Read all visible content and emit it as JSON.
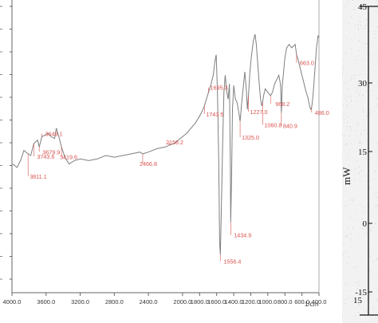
{
  "chart_data": [
    {
      "type": "line",
      "title": "",
      "xlabel": "1/cm",
      "ylabel": "",
      "xlim": [
        4000,
        400
      ],
      "x_reversed": true,
      "x_ticks": [
        "4000.0",
        "3600.0",
        "3200.0",
        "2800.0",
        "2400.0",
        "2000.0",
        "1600.0",
        "1200.0",
        "800.0",
        "400.0",
        "3600.0",
        "3200.0",
        "2800.0",
        "2400.0",
        "2000.0",
        "1600.0",
        "1200.0",
        "800.0",
        "600.0"
      ],
      "x_tick_values": [
        4000,
        3600,
        3200,
        2800,
        2400,
        2000,
        1600,
        1200,
        800,
        400
      ],
      "x_tick_labels": [
        "4000.0",
        "3600.0",
        "3200.0",
        "2800.0",
        "2400.0",
        "2000.0",
        "1800.0",
        "1600.0",
        "1400.0",
        "1200.0",
        "1000.0",
        "800.0",
        "600.0",
        "400.0"
      ],
      "x_tick_label_values": [
        4000,
        3600,
        3200,
        2800,
        2400,
        2000,
        1800,
        1600,
        1400,
        1200,
        1000,
        800,
        600,
        400
      ],
      "line_color": "#7f7f7f",
      "annotation_color": "#d9534f",
      "grid": false,
      "series": [
        {
          "points": [
            [
              3990,
              58
            ],
            [
              3940,
              56
            ],
            [
              3900,
              60
            ],
            [
              3860,
              66
            ],
            [
              3811.1,
              64
            ],
            [
              3780,
              63
            ],
            [
              3743.6,
              70
            ],
            [
              3700,
              72
            ],
            [
              3679.9,
              68
            ],
            [
              3649.1,
              74
            ],
            [
              3610,
              75
            ],
            [
              3580,
              76
            ],
            [
              3540,
              74
            ],
            [
              3500,
              73
            ],
            [
              3480,
              79
            ],
            [
              3450,
              74
            ],
            [
              3419.6,
              68
            ],
            [
              3380,
              62
            ],
            [
              3330,
              58
            ],
            [
              3270,
              60
            ],
            [
              3200,
              61
            ],
            [
              3100,
              60
            ],
            [
              3000,
              61
            ],
            [
              2900,
              63
            ],
            [
              2800,
              62
            ],
            [
              2700,
              63
            ],
            [
              2600,
              64
            ],
            [
              2500,
              65
            ],
            [
              2466.8,
              64
            ],
            [
              2400,
              65
            ],
            [
              2300,
              67
            ],
            [
              2200,
              68
            ],
            [
              2158.2,
              69
            ],
            [
              2100,
              70
            ],
            [
              2000,
              74
            ],
            [
              1950,
              76
            ],
            [
              1900,
              79
            ],
            [
              1850,
              82
            ],
            [
              1800,
              86
            ],
            [
              1760,
              90
            ],
            [
              1743.5,
              92
            ],
            [
              1720,
              96
            ],
            [
              1695.3,
              100
            ],
            [
              1670,
              104
            ],
            [
              1640,
              110
            ],
            [
              1620,
              118
            ],
            [
              1605,
              122
            ],
            [
              1590,
              100
            ],
            [
              1575,
              60
            ],
            [
              1565,
              12
            ],
            [
              1556.4,
              5
            ],
            [
              1545,
              30
            ],
            [
              1530,
              70
            ],
            [
              1515,
              100
            ],
            [
              1500,
              110
            ],
            [
              1480,
              100
            ],
            [
              1465,
              96
            ],
            [
              1450,
              105
            ],
            [
              1440,
              60
            ],
            [
              1434.9,
              24
            ],
            [
              1425,
              50
            ],
            [
              1415,
              90
            ],
            [
              1400,
              104
            ],
            [
              1380,
              96
            ],
            [
              1360,
              94
            ],
            [
              1340,
              88
            ],
            [
              1325.0,
              83
            ],
            [
              1310,
              92
            ],
            [
              1290,
              102
            ],
            [
              1270,
              112
            ],
            [
              1250,
              100
            ],
            [
              1240,
              90
            ],
            [
              1227.0,
              98
            ],
            [
              1210,
              112
            ],
            [
              1190,
              122
            ],
            [
              1170,
              130
            ],
            [
              1150,
              134
            ],
            [
              1135,
              128
            ],
            [
              1120,
              118
            ],
            [
              1100,
              105
            ],
            [
              1085,
              96
            ],
            [
              1070,
              92
            ],
            [
              1060.8,
              94
            ],
            [
              1050,
              98
            ],
            [
              1030,
              102
            ],
            [
              1000,
              100
            ],
            [
              968.2,
              98
            ],
            [
              945,
              100
            ],
            [
              920,
              105
            ],
            [
              890,
              108
            ],
            [
              870,
              110
            ],
            [
              850,
              104
            ],
            [
              840.9,
              88
            ],
            [
              830,
              104
            ],
            [
              800,
              120
            ],
            [
              780,
              126
            ],
            [
              750,
              128
            ],
            [
              720,
              126
            ],
            [
              700,
              127
            ],
            [
              680,
              128
            ],
            [
              663.0,
              122
            ],
            [
              650,
              120
            ],
            [
              630,
              116
            ],
            [
              610,
              112
            ],
            [
              590,
              108
            ],
            [
              570,
              104
            ],
            [
              550,
              100
            ],
            [
              530,
              97
            ],
            [
              510,
              92
            ],
            [
              496,
              90
            ],
            [
              486.0,
              91
            ],
            [
              470,
              98
            ],
            [
              450,
              112
            ],
            [
              430,
              126
            ],
            [
              410,
              133
            ],
            [
              400,
              132
            ]
          ]
        }
      ],
      "annotations": [
        {
          "label": "3811.1",
          "x": 3811.1
        },
        {
          "label": "3743.6",
          "x": 3743.6
        },
        {
          "label": "3679.9",
          "x": 3679.9
        },
        {
          "label": "3649.1",
          "x": 3649.1
        },
        {
          "label": "3419.6",
          "x": 3419.6
        },
        {
          "label": "2466.8",
          "x": 2466.8
        },
        {
          "label": "2158.2",
          "x": 2158.2
        },
        {
          "label": "1743.5",
          "x": 1743.5
        },
        {
          "label": "1695.3",
          "x": 1695.3
        },
        {
          "label": "1556.4",
          "x": 1556.4
        },
        {
          "label": "1434.9",
          "x": 1434.9
        },
        {
          "label": "1325.0",
          "x": 1325.0
        },
        {
          "label": "1227.0",
          "x": 1227.0
        },
        {
          "label": "1060.8",
          "x": 1060.8
        },
        {
          "label": "968.2",
          "x": 968.2
        },
        {
          "label": "840.9",
          "x": 840.9
        },
        {
          "label": "663.0",
          "x": 663.0
        },
        {
          "label": "486.0",
          "x": 486.0
        }
      ]
    },
    {
      "type": "line",
      "ylabel": "mW",
      "y_tick_labels": [
        "45",
        "30",
        "15",
        "0",
        "-15"
      ],
      "y_tick_values": [
        45,
        30,
        15,
        0,
        -15
      ],
      "bottom_label": "15"
    }
  ]
}
